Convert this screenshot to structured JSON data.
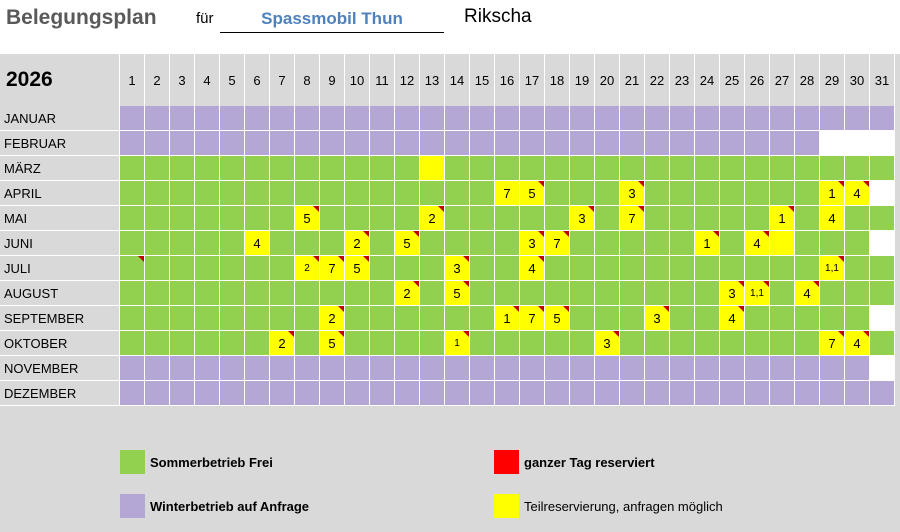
{
  "header": {
    "title": "Belegungsplan",
    "fuer_label": "für",
    "vehicle": "Spassmobil Thun",
    "type": "Rikscha"
  },
  "year": "2026",
  "days": [
    "1",
    "2",
    "3",
    "4",
    "5",
    "6",
    "7",
    "8",
    "9",
    "10",
    "11",
    "12",
    "13",
    "14",
    "15",
    "16",
    "17",
    "18",
    "19",
    "20",
    "21",
    "22",
    "23",
    "24",
    "25",
    "26",
    "27",
    "28",
    "29",
    "30",
    "31"
  ],
  "colors": {
    "sommer": "#92d050",
    "winter": "#b4a7d6",
    "teil": "#ffff00",
    "reserviert": "#ff0000"
  },
  "months": [
    {
      "name": "JANUAR",
      "kind": "winter",
      "length": 31,
      "entries": []
    },
    {
      "name": "FEBRUAR",
      "kind": "winter",
      "length": 28,
      "entries": []
    },
    {
      "name": "MÄRZ",
      "kind": "sommer",
      "length": 31,
      "entries": [
        {
          "day": 13,
          "text": "",
          "mark": false
        }
      ]
    },
    {
      "name": "APRIL",
      "kind": "sommer",
      "length": 30,
      "entries": [
        {
          "day": 16,
          "text": "7",
          "mark": false
        },
        {
          "day": 17,
          "text": "5",
          "mark": true
        },
        {
          "day": 21,
          "text": "3",
          "mark": true
        },
        {
          "day": 29,
          "text": "1",
          "mark": true
        },
        {
          "day": 30,
          "text": "4",
          "mark": true
        }
      ]
    },
    {
      "name": "MAI",
      "kind": "sommer",
      "length": 31,
      "entries": [
        {
          "day": 8,
          "text": "5",
          "mark": true
        },
        {
          "day": 13,
          "text": "2",
          "mark": true
        },
        {
          "day": 19,
          "text": "3",
          "mark": true
        },
        {
          "day": 21,
          "text": "7",
          "mark": true
        },
        {
          "day": 27,
          "text": "1",
          "mark": true
        },
        {
          "day": 29,
          "text": "4",
          "mark": false
        }
      ]
    },
    {
      "name": "JUNI",
      "kind": "sommer",
      "length": 30,
      "entries": [
        {
          "day": 6,
          "text": "4",
          "mark": false
        },
        {
          "day": 10,
          "text": "2",
          "mark": true
        },
        {
          "day": 12,
          "text": "5",
          "mark": true
        },
        {
          "day": 17,
          "text": "3",
          "mark": true
        },
        {
          "day": 18,
          "text": "7",
          "mark": true
        },
        {
          "day": 24,
          "text": "1",
          "mark": true
        },
        {
          "day": 26,
          "text": "4",
          "mark": true
        },
        {
          "day": 27,
          "text": "",
          "mark": false
        }
      ]
    },
    {
      "name": "JULI",
      "kind": "sommer",
      "length": 31,
      "entries": [
        {
          "day": 1,
          "text": "",
          "mark": true,
          "tri_only": true
        },
        {
          "day": 8,
          "text": "2",
          "mark": true,
          "small": true
        },
        {
          "day": 9,
          "text": "7",
          "mark": true
        },
        {
          "day": 10,
          "text": "5",
          "mark": true
        },
        {
          "day": 14,
          "text": "3",
          "mark": true
        },
        {
          "day": 17,
          "text": "4",
          "mark": true
        },
        {
          "day": 29,
          "text": "1,1",
          "mark": true,
          "small": true
        }
      ]
    },
    {
      "name": "AUGUST",
      "kind": "sommer",
      "length": 31,
      "entries": [
        {
          "day": 12,
          "text": "2",
          "mark": true
        },
        {
          "day": 14,
          "text": "5",
          "mark": true
        },
        {
          "day": 25,
          "text": "3",
          "mark": true
        },
        {
          "day": 26,
          "text": "1,1",
          "mark": true,
          "small": true
        },
        {
          "day": 28,
          "text": "4",
          "mark": true
        }
      ]
    },
    {
      "name": "SEPTEMBER",
      "kind": "sommer",
      "length": 30,
      "entries": [
        {
          "day": 9,
          "text": "2",
          "mark": true
        },
        {
          "day": 16,
          "text": "1",
          "mark": true
        },
        {
          "day": 17,
          "text": "7",
          "mark": true
        },
        {
          "day": 18,
          "text": "5",
          "mark": true
        },
        {
          "day": 22,
          "text": "3",
          "mark": true
        },
        {
          "day": 25,
          "text": "4",
          "mark": true
        }
      ]
    },
    {
      "name": "OKTOBER",
      "kind": "sommer",
      "length": 31,
      "entries": [
        {
          "day": 7,
          "text": "2",
          "mark": true
        },
        {
          "day": 9,
          "text": "5",
          "mark": true
        },
        {
          "day": 14,
          "text": "1",
          "mark": true,
          "small": true
        },
        {
          "day": 20,
          "text": "3",
          "mark": true
        },
        {
          "day": 29,
          "text": "7",
          "mark": true
        },
        {
          "day": 30,
          "text": "4",
          "mark": true
        }
      ]
    },
    {
      "name": "NOVEMBER",
      "kind": "winter",
      "length": 30,
      "entries": []
    },
    {
      "name": "DEZEMBER",
      "kind": "winter",
      "length": 31,
      "entries": []
    }
  ],
  "legend": {
    "sommer": "Sommerbetrieb Frei",
    "winter": "Winterbetrieb auf Anfrage",
    "reserviert": "ganzer Tag reserviert",
    "teil": "Teilreservierung, anfragen möglich"
  }
}
